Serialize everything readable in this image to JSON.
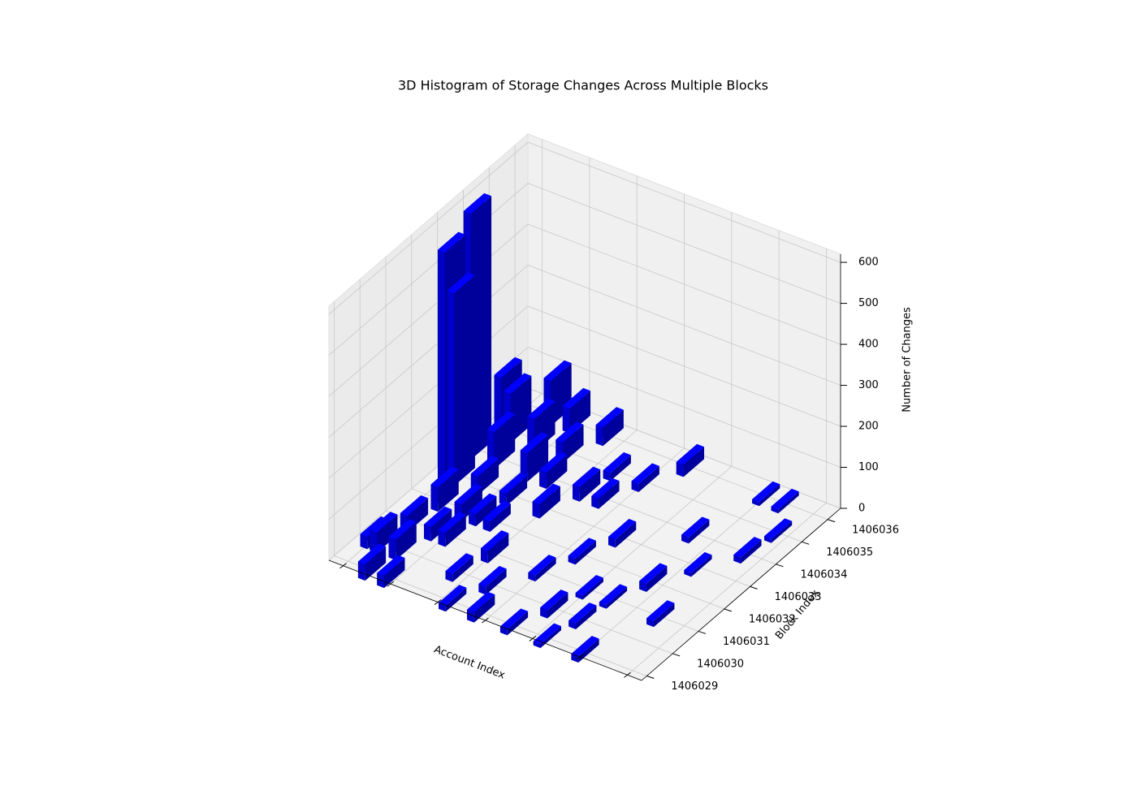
{
  "chart_data": {
    "type": "bar3d",
    "title": "3D Histogram of Storage Changes Across Multiple Blocks",
    "xlabel": "Account Index",
    "ylabel": "Block Index",
    "zlabel": "Number of Changes",
    "xlim": [
      -3,
      63
    ],
    "xticks": [
      0,
      10,
      20,
      30,
      40,
      50,
      60
    ],
    "ylim": [
      1406028.8,
      1406036.5
    ],
    "yticks": [
      1406029,
      1406030,
      1406031,
      1406032,
      1406033,
      1406034,
      1406035,
      1406036
    ],
    "zlim": [
      0,
      620
    ],
    "zticks": [
      0,
      100,
      200,
      300,
      400,
      500,
      600
    ],
    "color": "#0000ff",
    "grid": true,
    "bars": {
      "x": [
        0,
        0,
        2,
        1,
        3,
        5,
        6,
        8,
        10,
        12,
        14,
        4,
        7,
        9,
        11,
        13,
        15,
        18,
        20,
        22,
        25,
        28,
        30,
        2,
        5,
        8,
        12,
        16,
        20,
        24,
        27,
        33,
        36,
        40,
        44,
        48,
        52,
        55,
        58,
        35,
        38,
        42,
        46,
        50,
        54,
        57,
        30,
        34,
        45,
        50,
        0,
        3,
        6,
        9,
        17,
        23
      ],
      "y": [
        1406033,
        1406034,
        1406033,
        1406035,
        1406035,
        1406034,
        1406036,
        1406035,
        1406036,
        1406034,
        1406035,
        1406032,
        1406033,
        1406032,
        1406031,
        1406033,
        1406032,
        1406030,
        1406031,
        1406029,
        1406030,
        1406029,
        1406031,
        1406030,
        1406029,
        1406031,
        1406032,
        1406034,
        1406033,
        1406035,
        1406034,
        1406032,
        1406033,
        1406031,
        1406030,
        1406032,
        1406033,
        1406031,
        1406035,
        1406029,
        1406030,
        1406029,
        1406034,
        1406036,
        1406036,
        1406034,
        1406035,
        1406036,
        1406031,
        1406029,
        1406030,
        1406031,
        1406030,
        1406029,
        1406036,
        1406034
      ],
      "values": [
        560,
        600,
        470,
        150,
        120,
        90,
        110,
        80,
        60,
        70,
        50,
        60,
        45,
        40,
        35,
        30,
        25,
        20,
        30,
        15,
        20,
        25,
        15,
        50,
        40,
        35,
        30,
        40,
        35,
        20,
        25,
        15,
        20,
        10,
        15,
        20,
        10,
        15,
        10,
        15,
        20,
        10,
        15,
        10,
        10,
        15,
        20,
        30,
        10,
        15,
        30,
        40,
        50,
        30,
        45,
        35
      ]
    }
  }
}
